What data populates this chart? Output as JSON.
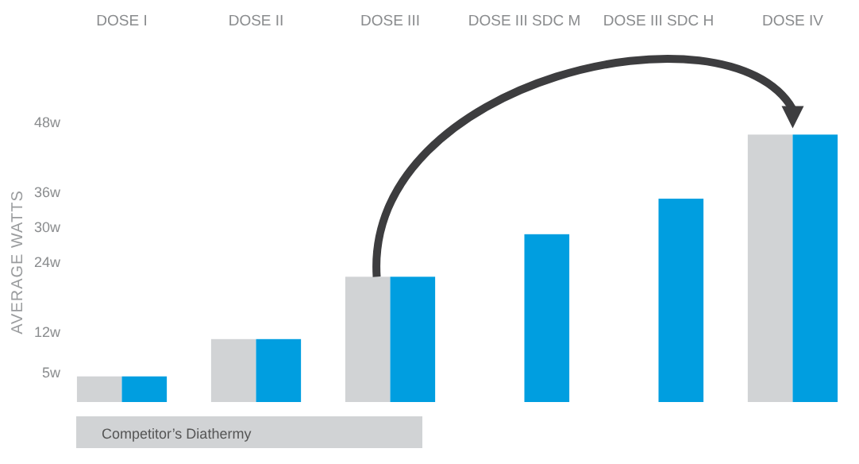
{
  "chart_data": {
    "type": "bar",
    "ylabel": "AVERAGE WATTS",
    "categories": [
      "DOSE I",
      "DOSE II",
      "DOSE III",
      "DOSE III SDC M",
      "DOSE III SDC H",
      "DOSE IV"
    ],
    "series": [
      {
        "name": "Competitor’s Diathermy",
        "color": "#d1d3d5",
        "values": [
          4.4,
          10.8,
          21.5,
          null,
          null,
          45.9
        ]
      },
      {
        "color": "#009ee0",
        "values": [
          4.4,
          10.8,
          21.5,
          28.8,
          34.9,
          45.9
        ]
      }
    ],
    "ylim": [
      0,
      48
    ],
    "yticks": [
      {
        "value": 5,
        "label": "5w"
      },
      {
        "value": 12,
        "label": "12w"
      },
      {
        "value": 24,
        "label": "24w"
      },
      {
        "value": 30,
        "label": "30w"
      },
      {
        "value": 36,
        "label": "36w"
      },
      {
        "value": 48,
        "label": "48w"
      }
    ],
    "grid": false,
    "legend": "bottom"
  }
}
